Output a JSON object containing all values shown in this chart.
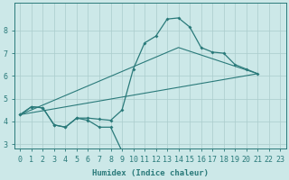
{
  "xlabel": "Humidex (Indice chaleur)",
  "xlim": [
    -0.5,
    23.5
  ],
  "ylim": [
    2.8,
    9.2
  ],
  "yticks": [
    3,
    4,
    5,
    6,
    7,
    8
  ],
  "xticks": [
    0,
    1,
    2,
    3,
    4,
    5,
    6,
    7,
    8,
    9,
    10,
    11,
    12,
    13,
    14,
    15,
    16,
    17,
    18,
    19,
    20,
    21,
    22,
    23
  ],
  "bg_color": "#cce8e8",
  "grid_color": "#aacccc",
  "line_color": "#2a7a7a",
  "curve_main": {
    "x": [
      0,
      1,
      2,
      3,
      4,
      5,
      6,
      7,
      8,
      9,
      10,
      11,
      12,
      13,
      14,
      15,
      16,
      17,
      18,
      19,
      20,
      21
    ],
    "y": [
      4.3,
      4.65,
      4.6,
      3.85,
      3.75,
      4.15,
      4.15,
      4.1,
      4.05,
      4.5,
      6.3,
      7.45,
      7.75,
      8.5,
      8.55,
      8.15,
      7.25,
      7.05,
      7.0,
      6.5,
      6.3,
      6.1
    ]
  },
  "curve_low": {
    "x": [
      0,
      1,
      2,
      3,
      4,
      5,
      6,
      7,
      8,
      9,
      10
    ],
    "y": [
      4.3,
      4.65,
      4.6,
      3.85,
      3.75,
      4.15,
      4.05,
      3.75,
      3.75,
      2.7,
      2.55
    ]
  },
  "line_straight": {
    "x": [
      0,
      21
    ],
    "y": [
      4.3,
      6.1
    ]
  },
  "line_envelope": {
    "x": [
      0,
      14,
      21
    ],
    "y": [
      4.3,
      7.25,
      6.1
    ]
  }
}
